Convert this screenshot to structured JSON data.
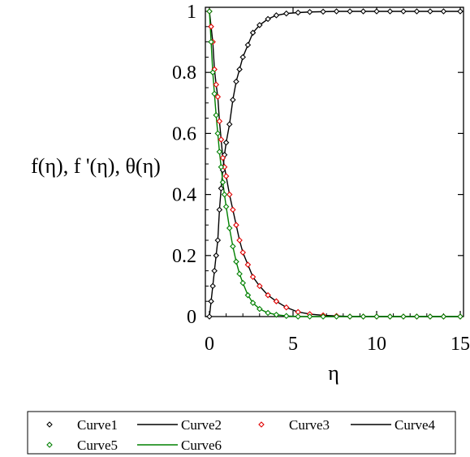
{
  "chart_data": {
    "type": "line",
    "title": "",
    "xlabel": "η",
    "ylabel": "f(η), f '(η), θ(η)",
    "xlim": [
      0,
      15
    ],
    "ylim": [
      0,
      1
    ],
    "x_ticks": [
      "0",
      "5",
      "10",
      "15"
    ],
    "y_ticks": [
      "0",
      "0.2",
      "0.4",
      "0.6",
      "0.8",
      "1"
    ],
    "grid": false,
    "legend_position": "bottom",
    "series": [
      {
        "name": "Curve1",
        "style": "markers",
        "marker": "diamond",
        "color": "#000000",
        "x": [
          0,
          0.1,
          0.2,
          0.3,
          0.4,
          0.5,
          0.6,
          0.7,
          0.8,
          0.9,
          1.0,
          1.2,
          1.4,
          1.6,
          1.8,
          2.0,
          2.3,
          2.6,
          3.0,
          3.5,
          4.0,
          4.6,
          5.3,
          6.0,
          6.8,
          7.6,
          8.4,
          9.2,
          10.0,
          10.8,
          11.6,
          12.4,
          13.2,
          14.0,
          15.0
        ],
        "y": [
          0,
          0.05,
          0.1,
          0.15,
          0.2,
          0.25,
          0.35,
          0.42,
          0.48,
          0.53,
          0.57,
          0.63,
          0.71,
          0.77,
          0.81,
          0.85,
          0.89,
          0.93,
          0.955,
          0.975,
          0.987,
          0.993,
          0.996,
          0.998,
          0.999,
          1,
          1,
          1,
          1,
          1,
          1,
          1,
          1,
          1,
          1
        ]
      },
      {
        "name": "Curve2",
        "style": "line",
        "color": "#000000",
        "x": [
          0,
          0.1,
          0.2,
          0.3,
          0.4,
          0.5,
          0.6,
          0.7,
          0.8,
          0.9,
          1.0,
          1.2,
          1.4,
          1.6,
          1.8,
          2.0,
          2.3,
          2.6,
          3.0,
          3.5,
          4.0,
          4.6,
          5.3,
          6.0,
          6.8,
          7.6,
          8.4,
          9.2,
          10.0,
          10.8,
          11.6,
          12.4,
          13.2,
          14.0,
          15.0
        ],
        "y": [
          0,
          0.05,
          0.1,
          0.15,
          0.2,
          0.25,
          0.35,
          0.42,
          0.48,
          0.53,
          0.57,
          0.63,
          0.71,
          0.77,
          0.81,
          0.85,
          0.89,
          0.93,
          0.955,
          0.975,
          0.987,
          0.993,
          0.996,
          0.998,
          0.999,
          1,
          1,
          1,
          1,
          1,
          1,
          1,
          1,
          1,
          1
        ]
      },
      {
        "name": "Curve3",
        "style": "markers",
        "marker": "diamond",
        "color": "#e00000",
        "x": [
          0,
          0.1,
          0.2,
          0.3,
          0.4,
          0.5,
          0.6,
          0.7,
          0.8,
          0.9,
          1.0,
          1.2,
          1.4,
          1.6,
          1.8,
          2.0,
          2.3,
          2.6,
          3.0,
          3.5,
          4.0,
          4.6,
          5.3,
          6.0,
          6.8,
          7.6,
          8.4,
          9.2,
          10.0,
          10.8,
          11.6,
          12.4,
          13.2,
          14.0,
          15.0
        ],
        "y": [
          1,
          0.95,
          0.9,
          0.81,
          0.76,
          0.72,
          0.64,
          0.58,
          0.52,
          0.49,
          0.46,
          0.4,
          0.35,
          0.3,
          0.25,
          0.21,
          0.17,
          0.13,
          0.1,
          0.07,
          0.05,
          0.03,
          0.015,
          0.008,
          0.004,
          0.002,
          0,
          0,
          0,
          0,
          0,
          0,
          0,
          0,
          0
        ]
      },
      {
        "name": "Curve4",
        "style": "line",
        "color": "#000000",
        "x": [
          0,
          0.1,
          0.2,
          0.3,
          0.4,
          0.5,
          0.6,
          0.7,
          0.8,
          0.9,
          1.0,
          1.2,
          1.4,
          1.6,
          1.8,
          2.0,
          2.3,
          2.6,
          3.0,
          3.5,
          4.0,
          4.6,
          5.3,
          6.0,
          6.8,
          7.6,
          8.4,
          9.2,
          10.0,
          10.8,
          11.6,
          12.4,
          13.2,
          14.0,
          15.0
        ],
        "y": [
          1,
          0.95,
          0.9,
          0.81,
          0.76,
          0.72,
          0.64,
          0.58,
          0.52,
          0.49,
          0.46,
          0.4,
          0.35,
          0.3,
          0.25,
          0.21,
          0.17,
          0.13,
          0.1,
          0.07,
          0.05,
          0.03,
          0.015,
          0.008,
          0.004,
          0.002,
          0,
          0,
          0,
          0,
          0,
          0,
          0,
          0,
          0
        ]
      },
      {
        "name": "Curve5",
        "style": "markers",
        "marker": "diamond",
        "color": "#008000",
        "x": [
          0,
          0.1,
          0.2,
          0.3,
          0.4,
          0.5,
          0.6,
          0.7,
          0.8,
          0.9,
          1.0,
          1.2,
          1.4,
          1.6,
          1.8,
          2.0,
          2.3,
          2.6,
          3.0,
          3.5,
          4.0,
          4.6,
          5.3,
          6.0,
          6.8,
          7.6,
          8.4,
          9.2,
          10.0,
          10.8,
          11.6,
          12.4,
          13.2,
          14.0,
          15.0
        ],
        "y": [
          1,
          0.9,
          0.8,
          0.73,
          0.66,
          0.6,
          0.54,
          0.49,
          0.44,
          0.4,
          0.36,
          0.29,
          0.23,
          0.18,
          0.14,
          0.11,
          0.07,
          0.045,
          0.025,
          0.012,
          0.006,
          0.002,
          0,
          0,
          0,
          0,
          0,
          0,
          0,
          0,
          0,
          0,
          0,
          0,
          0
        ]
      },
      {
        "name": "Curve6",
        "style": "line",
        "color": "#008000",
        "x": [
          0,
          0.1,
          0.2,
          0.3,
          0.4,
          0.5,
          0.6,
          0.7,
          0.8,
          0.9,
          1.0,
          1.2,
          1.4,
          1.6,
          1.8,
          2.0,
          2.3,
          2.6,
          3.0,
          3.5,
          4.0,
          4.6,
          5.3,
          6.0,
          6.8,
          7.6,
          8.4,
          9.2,
          10.0,
          10.8,
          11.6,
          12.4,
          13.2,
          14.0,
          15.0
        ],
        "y": [
          1,
          0.9,
          0.8,
          0.73,
          0.66,
          0.6,
          0.54,
          0.49,
          0.44,
          0.4,
          0.36,
          0.29,
          0.23,
          0.18,
          0.14,
          0.11,
          0.07,
          0.045,
          0.025,
          0.012,
          0.006,
          0.002,
          0,
          0,
          0,
          0,
          0,
          0,
          0,
          0,
          0,
          0,
          0,
          0,
          0
        ]
      }
    ]
  }
}
